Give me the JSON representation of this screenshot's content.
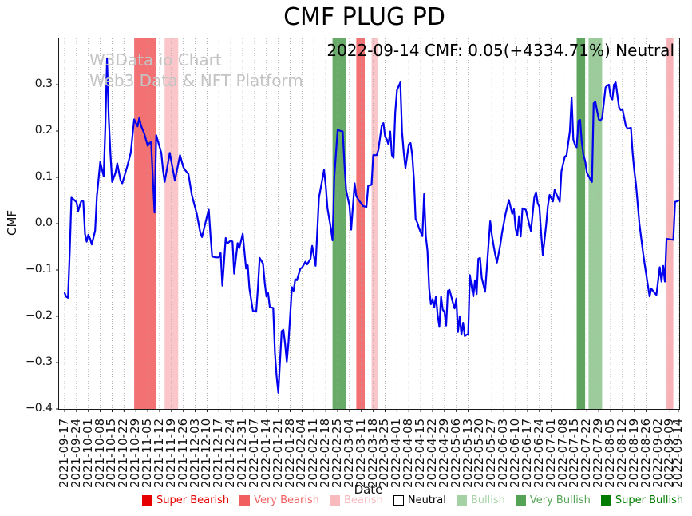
{
  "title": "CMF PLUG PD",
  "annotation": "2022-09-14 CMF: 0.05(+4334.71%) Neutral",
  "watermark": {
    "line1": "W3Data.io Chart",
    "line2": "Web3 Data & NFT Platform"
  },
  "axes": {
    "x_label": "Date",
    "y_label": "CMF"
  },
  "status": {
    "last_date": "2022-09-14",
    "last_cmf": "0.05",
    "change_pct": "+4334.71%",
    "signal": "Neutral"
  },
  "legend": {
    "items": [
      {
        "label": "Super Bearish",
        "color": "#e60000",
        "text_color": "#e60000"
      },
      {
        "label": "Very Bearish",
        "color": "#f25f5f",
        "text_color": "#f25f5f"
      },
      {
        "label": "Bearish",
        "color": "#f9babd",
        "text_color": "#f9babd"
      },
      {
        "label": "Neutral",
        "color": "#ffffff",
        "text_color": "#000000",
        "border": "#000000"
      },
      {
        "label": "Bullish",
        "color": "#a5d2a5",
        "text_color": "#a5d2a5"
      },
      {
        "label": "Very Bullish",
        "color": "#55a455",
        "text_color": "#55a455"
      },
      {
        "label": "Super Bullish",
        "color": "#007c00",
        "text_color": "#007c00"
      }
    ]
  },
  "chart_data": {
    "type": "line",
    "title": "CMF PLUG PD",
    "xlabel": "Date",
    "ylabel": "CMF",
    "series_name": "CMF",
    "line_color": "#0000ee",
    "grid_color": "#ababab",
    "ylim": [
      -0.4,
      0.4
    ],
    "x_start_date": "2021-09-17",
    "x_end_date": "2022-09-14",
    "x_span_days": 362,
    "y_ticks": [
      {
        "value": 0.3,
        "label": "0.3"
      },
      {
        "value": 0.2,
        "label": "0.2"
      },
      {
        "value": 0.1,
        "label": "0.1"
      },
      {
        "value": 0.0,
        "label": "0.0"
      },
      {
        "value": -0.1,
        "label": "−0.1"
      },
      {
        "value": -0.2,
        "label": "−0.2"
      },
      {
        "value": -0.3,
        "label": "−0.3"
      },
      {
        "value": -0.4,
        "label": "−0.4"
      }
    ],
    "x_ticks": [
      {
        "day": 0,
        "label": "2021-09-17"
      },
      {
        "day": 7,
        "label": "2021-09-24"
      },
      {
        "day": 14,
        "label": "2021-10-01"
      },
      {
        "day": 21,
        "label": "2021-10-08"
      },
      {
        "day": 28,
        "label": "2021-10-15"
      },
      {
        "day": 35,
        "label": "2021-10-22"
      },
      {
        "day": 42,
        "label": "2021-10-29"
      },
      {
        "day": 49,
        "label": "2021-11-05"
      },
      {
        "day": 56,
        "label": "2021-11-12"
      },
      {
        "day": 63,
        "label": "2021-11-19"
      },
      {
        "day": 70,
        "label": "2021-11-26"
      },
      {
        "day": 77,
        "label": "2021-12-03"
      },
      {
        "day": 84,
        "label": "2021-12-10"
      },
      {
        "day": 91,
        "label": "2021-12-17"
      },
      {
        "day": 98,
        "label": "2021-12-24"
      },
      {
        "day": 105,
        "label": "2021-12-31"
      },
      {
        "day": 112,
        "label": "2022-01-07"
      },
      {
        "day": 119,
        "label": "2022-01-14"
      },
      {
        "day": 126,
        "label": "2022-01-21"
      },
      {
        "day": 133,
        "label": "2022-01-28"
      },
      {
        "day": 140,
        "label": "2022-02-04"
      },
      {
        "day": 147,
        "label": "2022-02-11"
      },
      {
        "day": 154,
        "label": "2022-02-18"
      },
      {
        "day": 161,
        "label": "2022-02-25"
      },
      {
        "day": 168,
        "label": "2022-03-04"
      },
      {
        "day": 175,
        "label": "2022-03-11"
      },
      {
        "day": 182,
        "label": "2022-03-18"
      },
      {
        "day": 189,
        "label": "2022-03-25"
      },
      {
        "day": 196,
        "label": "2022-04-01"
      },
      {
        "day": 203,
        "label": "2022-04-08"
      },
      {
        "day": 210,
        "label": "2022-04-15"
      },
      {
        "day": 217,
        "label": "2022-04-22"
      },
      {
        "day": 224,
        "label": "2022-04-29"
      },
      {
        "day": 231,
        "label": "2022-05-06"
      },
      {
        "day": 238,
        "label": "2022-05-13"
      },
      {
        "day": 245,
        "label": "2022-05-20"
      },
      {
        "day": 252,
        "label": "2022-05-27"
      },
      {
        "day": 259,
        "label": "2022-06-03"
      },
      {
        "day": 266,
        "label": "2022-06-10"
      },
      {
        "day": 273,
        "label": "2022-06-17"
      },
      {
        "day": 280,
        "label": "2022-06-24"
      },
      {
        "day": 287,
        "label": "2022-07-01"
      },
      {
        "day": 294,
        "label": "2022-07-08"
      },
      {
        "day": 301,
        "label": "2022-07-15"
      },
      {
        "day": 308,
        "label": "2022-07-22"
      },
      {
        "day": 315,
        "label": "2022-07-29"
      },
      {
        "day": 322,
        "label": "2022-08-05"
      },
      {
        "day": 329,
        "label": "2022-08-12"
      },
      {
        "day": 336,
        "label": "2022-08-19"
      },
      {
        "day": 343,
        "label": "2022-08-26"
      },
      {
        "day": 350,
        "label": "2022-09-02"
      },
      {
        "day": 357,
        "label": "2022-09-09"
      },
      {
        "day": 362,
        "label": "2022-09-14"
      }
    ],
    "bands": [
      {
        "label": "Very Bearish",
        "from_day": 41,
        "to_day": 54,
        "from_date": "2021-10-28",
        "to_date": "2021-11-10",
        "color": "#f37173"
      },
      {
        "label": "Bearish",
        "from_day": 59,
        "to_day": 67,
        "from_date": "2021-11-15",
        "to_date": "2021-11-23",
        "color": "#fbc6c9"
      },
      {
        "label": "Very Bullish",
        "from_day": 158,
        "to_day": 166,
        "from_date": "2022-02-22",
        "to_date": "2022-03-02",
        "color": "#68ab68"
      },
      {
        "label": "Very Bearish",
        "from_day": 172,
        "to_day": 177,
        "from_date": "2022-03-08",
        "to_date": "2022-03-13",
        "color": "#f37173"
      },
      {
        "label": "Bearish",
        "from_day": 181,
        "to_day": 185,
        "from_date": "2022-03-17",
        "to_date": "2022-03-21",
        "color": "#fbc6c9"
      },
      {
        "label": "Very Bullish",
        "from_day": 302,
        "to_day": 307,
        "from_date": "2022-07-16",
        "to_date": "2022-07-21",
        "color": "#5fa55f"
      },
      {
        "label": "Bullish",
        "from_day": 309,
        "to_day": 317,
        "from_date": "2022-07-23",
        "to_date": "2022-07-31",
        "color": "#9ccb9c"
      },
      {
        "label": "Bearish",
        "from_day": 355,
        "to_day": 359,
        "from_date": "2022-09-07",
        "to_date": "2022-09-11",
        "color": "#f7b3b7"
      }
    ],
    "points": [
      [
        0,
        -0.15
      ],
      [
        1,
        -0.158
      ],
      [
        2,
        -0.16
      ],
      [
        3,
        -0.06
      ],
      [
        4,
        0.056
      ],
      [
        6,
        0.05
      ],
      [
        7,
        0.046
      ],
      [
        8,
        0.027
      ],
      [
        9,
        0.04
      ],
      [
        10,
        0.05
      ],
      [
        11,
        0.048
      ],
      [
        12,
        -0.022
      ],
      [
        13,
        -0.039
      ],
      [
        14,
        -0.024
      ],
      [
        15,
        -0.033
      ],
      [
        16,
        -0.045
      ],
      [
        18,
        -0.015
      ],
      [
        19,
        0.06
      ],
      [
        21,
        0.133
      ],
      [
        23,
        0.102
      ],
      [
        24,
        0.21
      ],
      [
        25,
        0.357
      ],
      [
        26,
        0.23
      ],
      [
        27,
        0.15
      ],
      [
        28,
        0.09
      ],
      [
        30,
        0.11
      ],
      [
        31,
        0.13
      ],
      [
        33,
        0.093
      ],
      [
        34,
        0.087
      ],
      [
        37,
        0.125
      ],
      [
        39,
        0.153
      ],
      [
        41,
        0.225
      ],
      [
        43,
        0.21
      ],
      [
        44,
        0.228
      ],
      [
        45,
        0.212
      ],
      [
        47,
        0.194
      ],
      [
        49,
        0.168
      ],
      [
        50,
        0.174
      ],
      [
        51,
        0.176
      ],
      [
        53,
        0.024
      ],
      [
        54,
        0.191
      ],
      [
        57,
        0.153
      ],
      [
        58,
        0.116
      ],
      [
        59,
        0.09
      ],
      [
        62,
        0.153
      ],
      [
        64,
        0.113
      ],
      [
        65,
        0.093
      ],
      [
        68,
        0.148
      ],
      [
        70,
        0.122
      ],
      [
        71,
        0.116
      ],
      [
        73,
        0.107
      ],
      [
        75,
        0.062
      ],
      [
        78,
        0.02
      ],
      [
        80,
        -0.019
      ],
      [
        81,
        -0.029
      ],
      [
        84,
        0.016
      ],
      [
        85,
        0.03
      ],
      [
        86,
        -0.025
      ],
      [
        87,
        -0.071
      ],
      [
        89,
        -0.073
      ],
      [
        91,
        -0.073
      ],
      [
        92,
        -0.063
      ],
      [
        93,
        -0.134
      ],
      [
        95,
        -0.031
      ],
      [
        96,
        -0.043
      ],
      [
        98,
        -0.036
      ],
      [
        99,
        -0.039
      ],
      [
        100,
        -0.108
      ],
      [
        102,
        -0.042
      ],
      [
        103,
        -0.053
      ],
      [
        105,
        -0.022
      ],
      [
        107,
        -0.097
      ],
      [
        108,
        -0.09
      ],
      [
        109,
        -0.14
      ],
      [
        111,
        -0.188
      ],
      [
        113,
        -0.19
      ],
      [
        114,
        -0.137
      ],
      [
        115,
        -0.074
      ],
      [
        117,
        -0.086
      ],
      [
        118,
        -0.128
      ],
      [
        119,
        -0.157
      ],
      [
        120,
        -0.15
      ],
      [
        121,
        -0.18
      ],
      [
        123,
        -0.182
      ],
      [
        124,
        -0.278
      ],
      [
        125,
        -0.329
      ],
      [
        126,
        -0.365
      ],
      [
        127,
        -0.298
      ],
      [
        128,
        -0.232
      ],
      [
        129,
        -0.229
      ],
      [
        130,
        -0.26
      ],
      [
        131,
        -0.298
      ],
      [
        132,
        -0.257
      ],
      [
        133,
        -0.2
      ],
      [
        134,
        -0.137
      ],
      [
        135,
        -0.145
      ],
      [
        136,
        -0.12
      ],
      [
        137,
        -0.122
      ],
      [
        139,
        -0.097
      ],
      [
        140,
        -0.095
      ],
      [
        142,
        -0.082
      ],
      [
        143,
        -0.088
      ],
      [
        145,
        -0.076
      ],
      [
        146,
        -0.048
      ],
      [
        148,
        -0.091
      ],
      [
        150,
        0.056
      ],
      [
        153,
        0.116
      ],
      [
        154,
        0.082
      ],
      [
        155,
        0.033
      ],
      [
        157,
        -0.01
      ],
      [
        158,
        -0.036
      ],
      [
        159,
        0.1
      ],
      [
        161,
        0.202
      ],
      [
        163,
        0.2
      ],
      [
        164,
        0.199
      ],
      [
        165,
        0.13
      ],
      [
        166,
        0.073
      ],
      [
        168,
        0.038
      ],
      [
        169,
        -0.013
      ],
      [
        171,
        0.087
      ],
      [
        172,
        0.059
      ],
      [
        174,
        0.048
      ],
      [
        176,
        0.038
      ],
      [
        178,
        0.036
      ],
      [
        179,
        0.082
      ],
      [
        181,
        0.084
      ],
      [
        182,
        0.148
      ],
      [
        184,
        0.148
      ],
      [
        185,
        0.159
      ],
      [
        187,
        0.211
      ],
      [
        188,
        0.217
      ],
      [
        189,
        0.188
      ],
      [
        190,
        0.182
      ],
      [
        191,
        0.171
      ],
      [
        192,
        0.199
      ],
      [
        193,
        0.148
      ],
      [
        194,
        0.142
      ],
      [
        195,
        0.24
      ],
      [
        196,
        0.288
      ],
      [
        198,
        0.305
      ],
      [
        199,
        0.199
      ],
      [
        200,
        0.153
      ],
      [
        201,
        0.12
      ],
      [
        203,
        0.171
      ],
      [
        204,
        0.174
      ],
      [
        205,
        0.148
      ],
      [
        206,
        0.096
      ],
      [
        207,
        0.01
      ],
      [
        208,
        0.002
      ],
      [
        209,
        -0.01
      ],
      [
        211,
        -0.027
      ],
      [
        212,
        0.064
      ],
      [
        213,
        -0.027
      ],
      [
        214,
        -0.059
      ],
      [
        215,
        -0.14
      ],
      [
        216,
        -0.174
      ],
      [
        217,
        -0.163
      ],
      [
        218,
        -0.18
      ],
      [
        219,
        -0.157
      ],
      [
        220,
        -0.197
      ],
      [
        221,
        -0.223
      ],
      [
        222,
        -0.157
      ],
      [
        223,
        -0.186
      ],
      [
        224,
        -0.19
      ],
      [
        225,
        -0.22
      ],
      [
        226,
        -0.145
      ],
      [
        227,
        -0.143
      ],
      [
        229,
        -0.171
      ],
      [
        230,
        -0.183
      ],
      [
        231,
        -0.162
      ],
      [
        232,
        -0.234
      ],
      [
        233,
        -0.2
      ],
      [
        234,
        -0.24
      ],
      [
        235,
        -0.214
      ],
      [
        236,
        -0.243
      ],
      [
        237,
        -0.24
      ],
      [
        238,
        -0.239
      ],
      [
        239,
        -0.111
      ],
      [
        240,
        -0.134
      ],
      [
        241,
        -0.157
      ],
      [
        242,
        -0.122
      ],
      [
        243,
        -0.152
      ],
      [
        244,
        -0.076
      ],
      [
        245,
        -0.074
      ],
      [
        246,
        -0.117
      ],
      [
        248,
        -0.147
      ],
      [
        251,
        0.005
      ],
      [
        252,
        -0.025
      ],
      [
        253,
        -0.048
      ],
      [
        254,
        -0.068
      ],
      [
        255,
        -0.084
      ],
      [
        257,
        -0.045
      ],
      [
        258,
        -0.019
      ],
      [
        260,
        0.02
      ],
      [
        262,
        0.051
      ],
      [
        264,
        0.021
      ],
      [
        265,
        0.031
      ],
      [
        266,
        -0.012
      ],
      [
        267,
        -0.025
      ],
      [
        268,
        0.016
      ],
      [
        269,
        -0.028
      ],
      [
        270,
        0.033
      ],
      [
        272,
        0.03
      ],
      [
        274,
        -0.002
      ],
      [
        275,
        -0.016
      ],
      [
        277,
        0.056
      ],
      [
        278,
        0.068
      ],
      [
        279,
        0.044
      ],
      [
        280,
        0.036
      ],
      [
        281,
        -0.019
      ],
      [
        282,
        -0.068
      ],
      [
        284,
        -0.002
      ],
      [
        285,
        0.038
      ],
      [
        286,
        0.062
      ],
      [
        288,
        0.048
      ],
      [
        289,
        0.073
      ],
      [
        292,
        0.047
      ],
      [
        293,
        0.113
      ],
      [
        295,
        0.145
      ],
      [
        296,
        0.147
      ],
      [
        298,
        0.2
      ],
      [
        299,
        0.272
      ],
      [
        300,
        0.182
      ],
      [
        301,
        0.17
      ],
      [
        302,
        0.165
      ],
      [
        303,
        0.222
      ],
      [
        304,
        0.224
      ],
      [
        305,
        0.176
      ],
      [
        306,
        0.148
      ],
      [
        307,
        0.135
      ],
      [
        308,
        0.11
      ],
      [
        310,
        0.096
      ],
      [
        311,
        0.09
      ],
      [
        312,
        0.26
      ],
      [
        313,
        0.263
      ],
      [
        315,
        0.225
      ],
      [
        316,
        0.222
      ],
      [
        317,
        0.228
      ],
      [
        319,
        0.294
      ],
      [
        320,
        0.298
      ],
      [
        321,
        0.3
      ],
      [
        322,
        0.274
      ],
      [
        323,
        0.268
      ],
      [
        324,
        0.3
      ],
      [
        325,
        0.305
      ],
      [
        327,
        0.251
      ],
      [
        328,
        0.245
      ],
      [
        329,
        0.247
      ],
      [
        331,
        0.211
      ],
      [
        332,
        0.205
      ],
      [
        334,
        0.207
      ],
      [
        335,
        0.153
      ],
      [
        336,
        0.113
      ],
      [
        337,
        0.084
      ],
      [
        339,
        0.0
      ],
      [
        341,
        -0.059
      ],
      [
        342,
        -0.085
      ],
      [
        344,
        -0.134
      ],
      [
        345,
        -0.157
      ],
      [
        346,
        -0.14
      ],
      [
        348,
        -0.15
      ],
      [
        349,
        -0.154
      ],
      [
        351,
        -0.094
      ],
      [
        352,
        -0.125
      ],
      [
        353,
        -0.091
      ],
      [
        354,
        -0.125
      ],
      [
        355,
        -0.033
      ],
      [
        357,
        -0.034
      ],
      [
        359,
        -0.035
      ],
      [
        360,
        0.047
      ],
      [
        361,
        0.048
      ],
      [
        362,
        0.05
      ]
    ]
  }
}
